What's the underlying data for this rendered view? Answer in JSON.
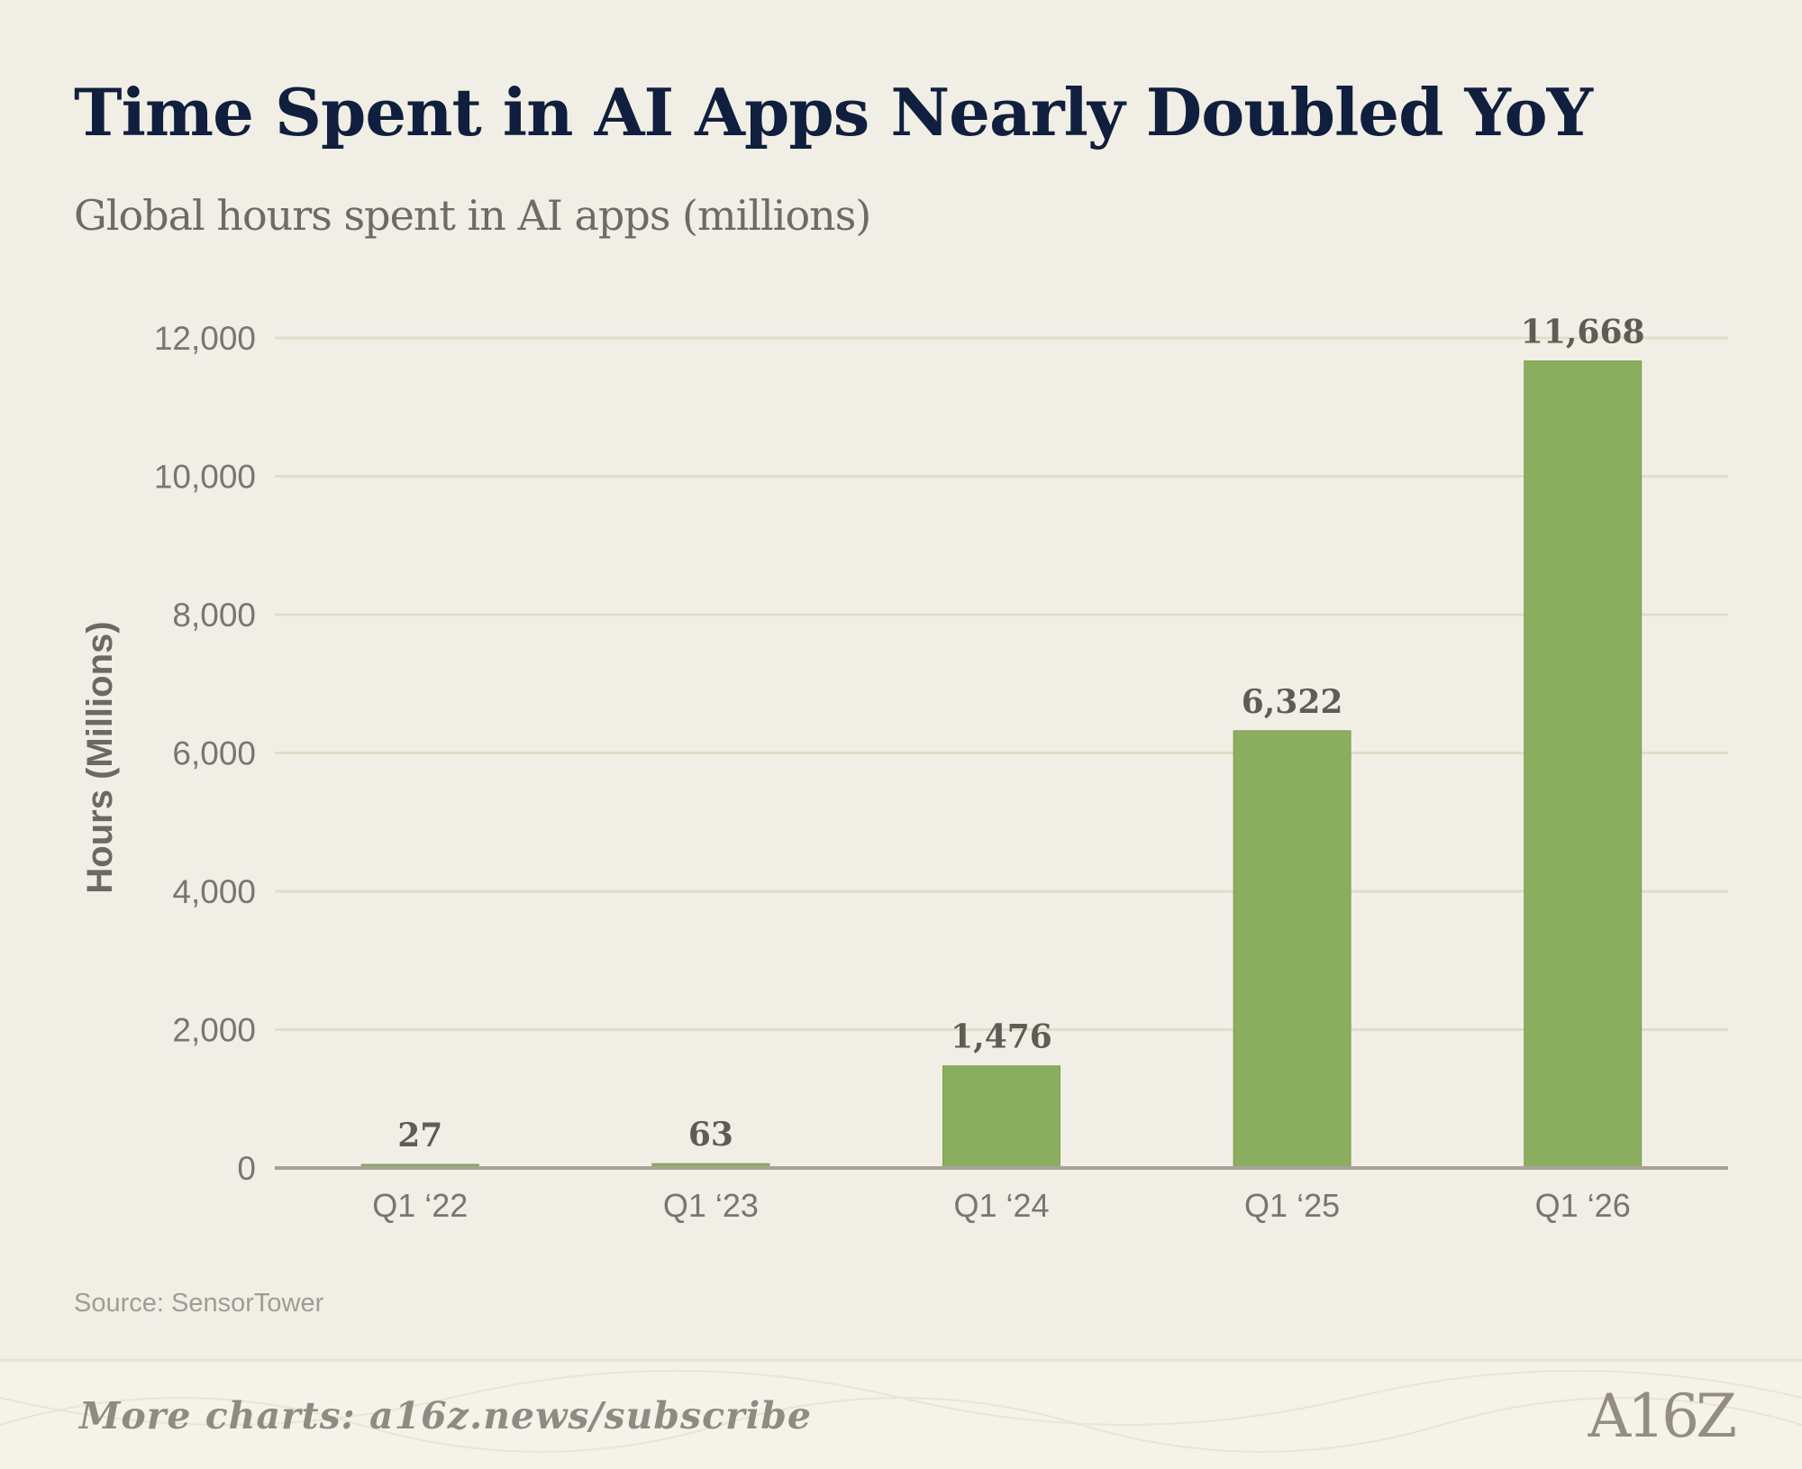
{
  "header": {
    "title": "Time Spent in AI Apps Nearly Doubled YoY",
    "subtitle": "Global hours spent in AI apps (millions)"
  },
  "chart_data": {
    "type": "bar",
    "categories": [
      "Q1 ‘22",
      "Q1 ‘23",
      "Q1 ‘24",
      "Q1 ‘25",
      "Q1 ‘26"
    ],
    "values": [
      27,
      63,
      1476,
      6322,
      11668
    ],
    "value_labels": [
      "27",
      "63",
      "1,476",
      "6,322",
      "11,668"
    ],
    "ylabel": "Hours (Millions)",
    "ylim": [
      0,
      12000
    ],
    "yticks": [
      0,
      2000,
      4000,
      6000,
      8000,
      10000,
      12000
    ],
    "ytick_labels": [
      "0",
      "2,000",
      "4,000",
      "6,000",
      "8,000",
      "10,000",
      "12,000"
    ],
    "grid": true,
    "bar_color": "#8bad5e"
  },
  "source": "Source: SensorTower",
  "footer": {
    "cta": "More charts: a16z.news/subscribe",
    "logo": "A16Z"
  }
}
